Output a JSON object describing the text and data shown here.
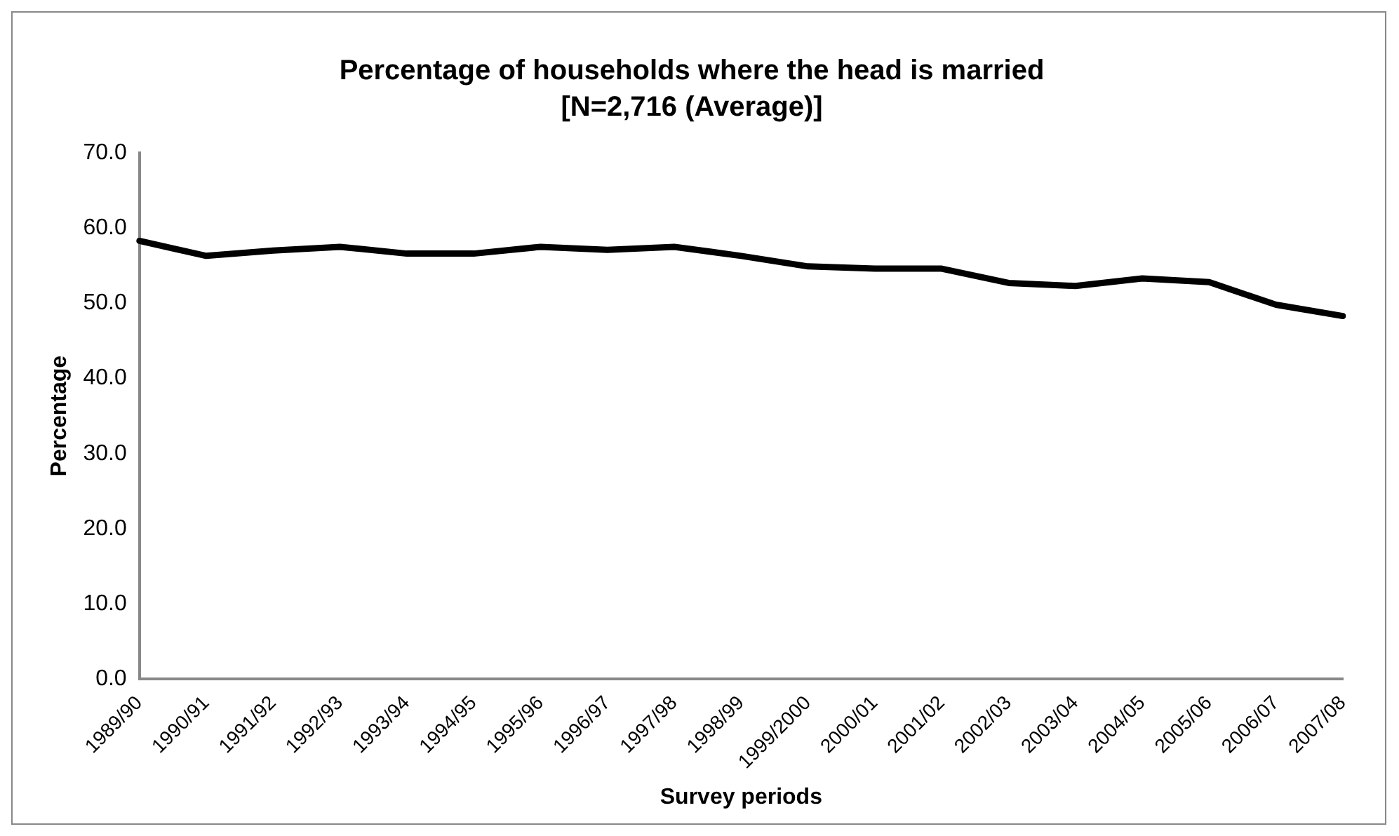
{
  "chart_data": {
    "type": "line",
    "title": "Percentage of households where the head is married",
    "subtitle": "[N=2,716 (Average)]",
    "xlabel": "Survey periods",
    "ylabel": "Percentage",
    "categories": [
      "1989/90",
      "1990/91",
      "1991/92",
      "1992/93",
      "1993/94",
      "1994/95",
      "1995/96",
      "1996/97",
      "1997/98",
      "1998/99",
      "1999/2000",
      "2000/01",
      "2001/02",
      "2002/03",
      "2003/04",
      "2004/05",
      "2005/06",
      "2006/07",
      "2007/08"
    ],
    "series": [
      {
        "color": "#000000",
        "values": [
          58.3,
          56.3,
          57.0,
          57.5,
          56.6,
          56.6,
          57.5,
          57.1,
          57.5,
          56.3,
          54.9,
          54.6,
          54.6,
          52.7,
          52.3,
          53.3,
          52.8,
          49.8,
          48.3
        ]
      }
    ],
    "ylim": [
      0,
      70
    ],
    "yticks": [
      {
        "value": 0,
        "label": "0.0"
      },
      {
        "value": 10,
        "label": "10.0"
      },
      {
        "value": 20,
        "label": "20.0"
      },
      {
        "value": 30,
        "label": "30.0"
      },
      {
        "value": 40,
        "label": "40.0"
      },
      {
        "value": 50,
        "label": "50.0"
      },
      {
        "value": 60,
        "label": "60.0"
      },
      {
        "value": 70,
        "label": "70.0"
      }
    ],
    "grid": false,
    "legend": false,
    "marker": "none",
    "line_style": "solid"
  }
}
